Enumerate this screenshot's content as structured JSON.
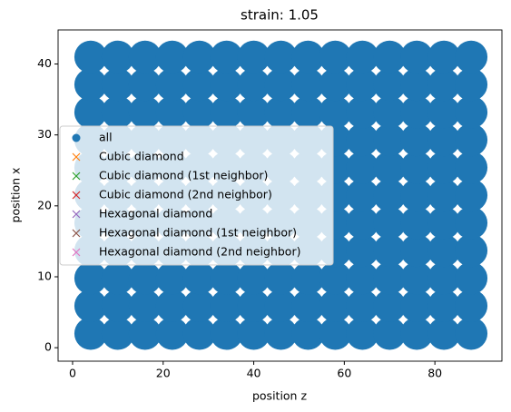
{
  "chart_data": {
    "type": "scatter",
    "title": "strain: 1.05",
    "xlabel": "position z",
    "ylabel": "position x",
    "xlim": [
      -3.2,
      94.8
    ],
    "ylim": [
      -1.9,
      44.8
    ],
    "xticks": [
      0,
      20,
      40,
      60,
      80
    ],
    "yticks": [
      0,
      10,
      20,
      30,
      40
    ],
    "legend": "center left",
    "series": [
      {
        "name": "all",
        "color": "#1f77b4",
        "marker": "o",
        "x": [
          4,
          10,
          16,
          22,
          28,
          34,
          40,
          46,
          52,
          58,
          64,
          70,
          76,
          82,
          88,
          4,
          10,
          16,
          22,
          28,
          34,
          40,
          46,
          52,
          58,
          64,
          70,
          76,
          82,
          88,
          4,
          10,
          16,
          22,
          28,
          34,
          40,
          46,
          52,
          58,
          64,
          70,
          76,
          82,
          88,
          4,
          10,
          16,
          22,
          28,
          34,
          40,
          46,
          52,
          58,
          64,
          70,
          76,
          82,
          88,
          4,
          10,
          16,
          22,
          28,
          34,
          40,
          46,
          52,
          58,
          64,
          70,
          76,
          82,
          88,
          4,
          10,
          16,
          22,
          28,
          34,
          40,
          46,
          52,
          58,
          64,
          70,
          76,
          82,
          88,
          4,
          10,
          16,
          22,
          28,
          34,
          40,
          46,
          52,
          58,
          64,
          70,
          76,
          82,
          88,
          4,
          10,
          16,
          22,
          28,
          34,
          40,
          46,
          52,
          58,
          64,
          70,
          76,
          82,
          88,
          4,
          10,
          16,
          22,
          28,
          34,
          40,
          46,
          52,
          58,
          64,
          70,
          76,
          82,
          88,
          4,
          10,
          16,
          22,
          28,
          34,
          40,
          46,
          52,
          58,
          64,
          70,
          76,
          82,
          88,
          4,
          10,
          16,
          22,
          28,
          34,
          40,
          46,
          52,
          58,
          64,
          70,
          76,
          82,
          88
        ],
        "y": [
          2,
          2,
          2,
          2,
          2,
          2,
          2,
          2,
          2,
          2,
          2,
          2,
          2,
          2,
          2,
          5.9,
          5.9,
          5.9,
          5.9,
          5.9,
          5.9,
          5.9,
          5.9,
          5.9,
          5.9,
          5.9,
          5.9,
          5.9,
          5.9,
          5.9,
          9.8,
          9.8,
          9.8,
          9.8,
          9.8,
          9.8,
          9.8,
          9.8,
          9.8,
          9.8,
          9.8,
          9.8,
          9.8,
          9.8,
          9.8,
          13.7,
          13.7,
          13.7,
          13.7,
          13.7,
          13.7,
          13.7,
          13.7,
          13.7,
          13.7,
          13.7,
          13.7,
          13.7,
          13.7,
          13.7,
          17.6,
          17.6,
          17.6,
          17.6,
          17.6,
          17.6,
          17.6,
          17.6,
          17.6,
          17.6,
          17.6,
          17.6,
          17.6,
          17.6,
          17.6,
          21.5,
          21.5,
          21.5,
          21.5,
          21.5,
          21.5,
          21.5,
          21.5,
          21.5,
          21.5,
          21.5,
          21.5,
          21.5,
          21.5,
          21.5,
          25.4,
          25.4,
          25.4,
          25.4,
          25.4,
          25.4,
          25.4,
          25.4,
          25.4,
          25.4,
          25.4,
          25.4,
          25.4,
          25.4,
          25.4,
          29.3,
          29.3,
          29.3,
          29.3,
          29.3,
          29.3,
          29.3,
          29.3,
          29.3,
          29.3,
          29.3,
          29.3,
          29.3,
          29.3,
          29.3,
          33.2,
          33.2,
          33.2,
          33.2,
          33.2,
          33.2,
          33.2,
          33.2,
          33.2,
          33.2,
          33.2,
          33.2,
          33.2,
          33.2,
          33.2,
          37.1,
          37.1,
          37.1,
          37.1,
          37.1,
          37.1,
          37.1,
          37.1,
          37.1,
          37.1,
          37.1,
          37.1,
          37.1,
          37.1,
          37.1,
          41,
          41,
          41,
          41,
          41,
          41,
          41,
          41,
          41,
          41,
          41,
          41,
          41,
          41,
          41
        ]
      },
      {
        "name": "Cubic diamond",
        "color": "#ff7f0e",
        "marker": "x",
        "x": [],
        "y": []
      },
      {
        "name": "Cubic diamond (1st neighbor)",
        "color": "#2ca02c",
        "marker": "x",
        "x": [],
        "y": []
      },
      {
        "name": "Cubic diamond (2nd neighbor)",
        "color": "#d62728",
        "marker": "x",
        "x": [],
        "y": []
      },
      {
        "name": "Hexagonal diamond",
        "color": "#9467bd",
        "marker": "x",
        "x": [],
        "y": []
      },
      {
        "name": "Hexagonal diamond (1st neighbor)",
        "color": "#8c564b",
        "marker": "x",
        "x": [],
        "y": []
      },
      {
        "name": "Hexagonal diamond (2nd neighbor)",
        "color": "#e377c2",
        "marker": "x",
        "x": [],
        "y": []
      }
    ]
  }
}
